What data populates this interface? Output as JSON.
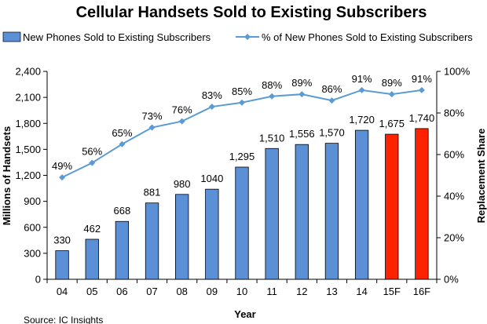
{
  "chart_data": {
    "type": "bar",
    "title": "Cellular Handsets Sold to Existing Subscribers",
    "xlabel": "Year",
    "ylabel": "Millions of Handsets",
    "y2label": "Replacement Share",
    "categories": [
      "04",
      "05",
      "06",
      "07",
      "08",
      "09",
      "10",
      "11",
      "12",
      "13",
      "14",
      "15F",
      "16F"
    ],
    "ylim": [
      0,
      2400
    ],
    "yticks": [
      "0",
      "300",
      "600",
      "900",
      "1,200",
      "1,500",
      "1,800",
      "2,100",
      "2,400"
    ],
    "y2lim": [
      0,
      100
    ],
    "y2ticks": [
      "0%",
      "20%",
      "40%",
      "60%",
      "80%",
      "100%"
    ],
    "grid": false,
    "legend_position": "top",
    "series": [
      {
        "name": "New Phones Sold to Existing Subscribers",
        "type": "bar",
        "axis": "left",
        "values": [
          330,
          462,
          668,
          881,
          980,
          1040,
          1295,
          1510,
          1556,
          1570,
          1720,
          1675,
          1740
        ],
        "labels": [
          "330",
          "462",
          "668",
          "881",
          "980",
          "1040",
          "1,295",
          "1,510",
          "1,556",
          "1,570",
          "1,720",
          "1,675",
          "1,740"
        ],
        "color": "#5b8fd6",
        "forecast_color": "#ff2200"
      },
      {
        "name": "% of New Phones Sold to Existing Subscribers",
        "type": "line",
        "axis": "right",
        "values": [
          49,
          56,
          65,
          73,
          76,
          83,
          85,
          88,
          89,
          86,
          91,
          89,
          91
        ],
        "labels": [
          "49%",
          "56%",
          "65%",
          "73%",
          "76%",
          "83%",
          "85%",
          "88%",
          "89%",
          "86%",
          "91%",
          "89%",
          "91%"
        ],
        "color": "#5b9bd5"
      }
    ],
    "forecast_categories": [
      "15F",
      "16F"
    ]
  },
  "source": "Source: IC Insights"
}
